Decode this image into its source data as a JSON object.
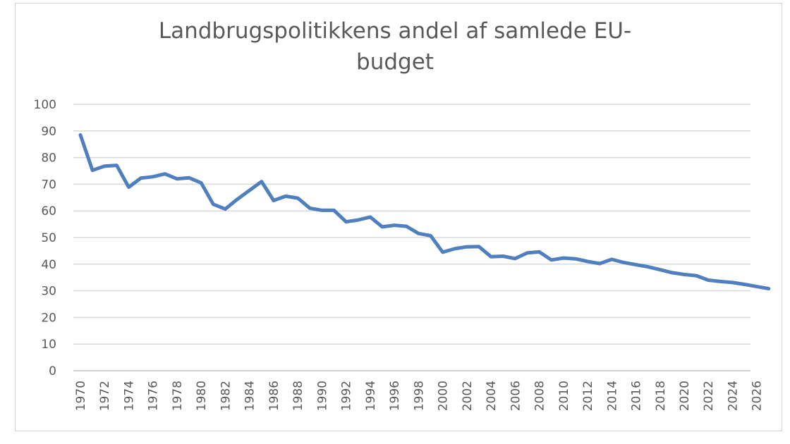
{
  "chart_data": {
    "type": "line",
    "title_lines": [
      "Landbrugspolitikkens andel af samlede EU-",
      "budget"
    ],
    "xlabel": "",
    "ylabel": "",
    "ylim": [
      0,
      100
    ],
    "yticks": [
      0,
      10,
      20,
      30,
      40,
      50,
      60,
      70,
      80,
      90,
      100
    ],
    "xticks": [
      "1970",
      "1972",
      "1974",
      "1976",
      "1978",
      "1980",
      "1982",
      "1984",
      "1986",
      "1988",
      "1990",
      "1992",
      "1994",
      "1996",
      "1998",
      "2000",
      "2002",
      "2004",
      "2006",
      "2008",
      "2010",
      "2012",
      "2014",
      "2016",
      "2018",
      "2020",
      "2022",
      "2024",
      "2026"
    ],
    "grid": true,
    "legend": "none",
    "color": "#4f7fbf",
    "x": [
      1970,
      1971,
      1972,
      1973,
      1974,
      1975,
      1976,
      1977,
      1978,
      1979,
      1980,
      1981,
      1982,
      1983,
      1984,
      1985,
      1986,
      1987,
      1988,
      1989,
      1990,
      1991,
      1992,
      1993,
      1994,
      1995,
      1996,
      1997,
      1998,
      1999,
      2000,
      2001,
      2002,
      2003,
      2004,
      2005,
      2006,
      2007,
      2008,
      2009,
      2010,
      2011,
      2012,
      2013,
      2014,
      2015,
      2016,
      2017,
      2018,
      2019,
      2020,
      2021,
      2022,
      2023,
      2024,
      2025,
      2026,
      2027
    ],
    "values": [
      88.5,
      75.2,
      76.8,
      77.1,
      68.9,
      72.3,
      72.8,
      73.9,
      72.0,
      72.4,
      70.5,
      62.5,
      60.7,
      64.4,
      67.7,
      71.0,
      63.9,
      65.5,
      64.8,
      61.0,
      60.2,
      60.2,
      55.9,
      56.6,
      57.7,
      54.0,
      54.6,
      54.2,
      51.5,
      50.7,
      44.5,
      45.8,
      46.5,
      46.6,
      42.8,
      43.0,
      42.1,
      44.2,
      44.6,
      41.6,
      42.3,
      42.0,
      41.0,
      40.2,
      41.8,
      40.6,
      39.8,
      39.0,
      37.9,
      36.8,
      36.1,
      35.7,
      34.0,
      33.5,
      33.1,
      32.4,
      31.6,
      30.8
    ]
  }
}
